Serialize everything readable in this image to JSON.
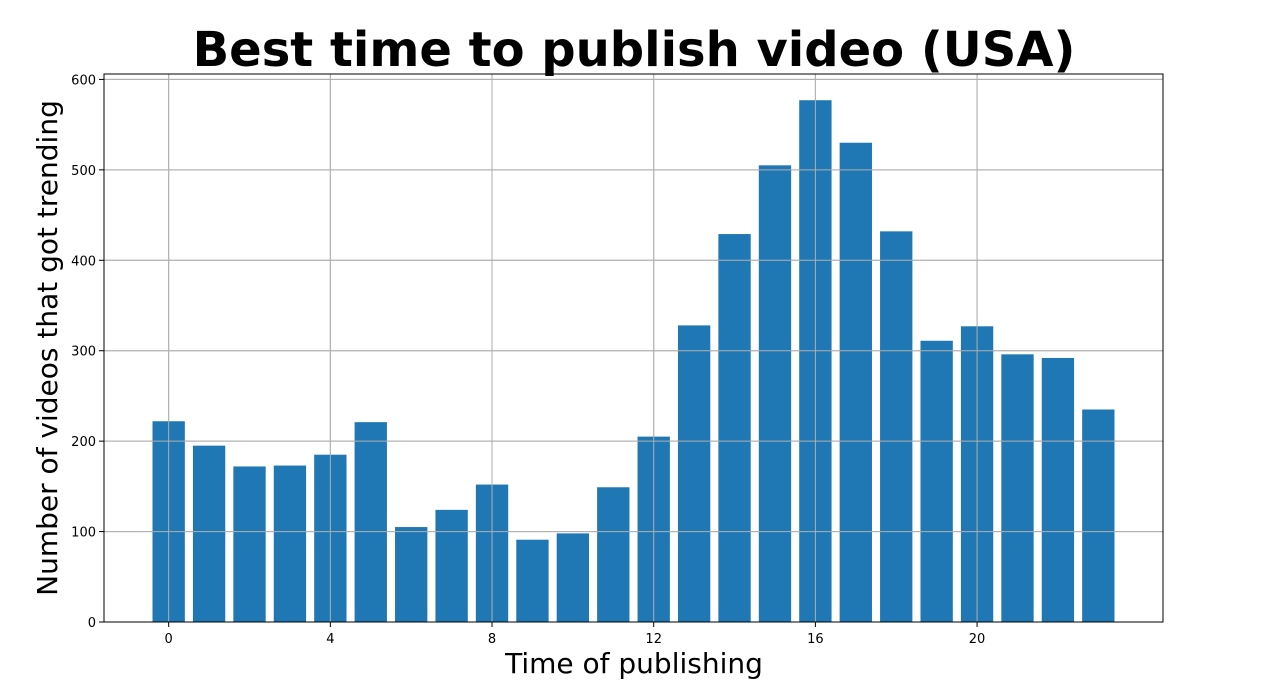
{
  "chart_data": {
    "type": "bar",
    "title": "Best time to publish video (USA)",
    "xlabel": "Time of publishing",
    "ylabel": "Number of videos that got trending",
    "x": [
      0,
      1,
      2,
      3,
      4,
      5,
      6,
      7,
      8,
      9,
      10,
      11,
      12,
      13,
      14,
      15,
      16,
      17,
      18,
      19,
      20,
      21,
      22,
      23
    ],
    "values": [
      222,
      195,
      172,
      173,
      185,
      221,
      105,
      124,
      152,
      91,
      98,
      149,
      205,
      328,
      429,
      505,
      577,
      530,
      432,
      311,
      327,
      296,
      292,
      235
    ],
    "xlim": [
      -1.6,
      24.6
    ],
    "ylim": [
      0,
      606
    ],
    "xticks": [
      0,
      4,
      8,
      12,
      16,
      20
    ],
    "yticks": [
      0,
      100,
      200,
      300,
      400,
      500,
      600
    ],
    "grid": true,
    "bar_color": "#1f77b4"
  }
}
